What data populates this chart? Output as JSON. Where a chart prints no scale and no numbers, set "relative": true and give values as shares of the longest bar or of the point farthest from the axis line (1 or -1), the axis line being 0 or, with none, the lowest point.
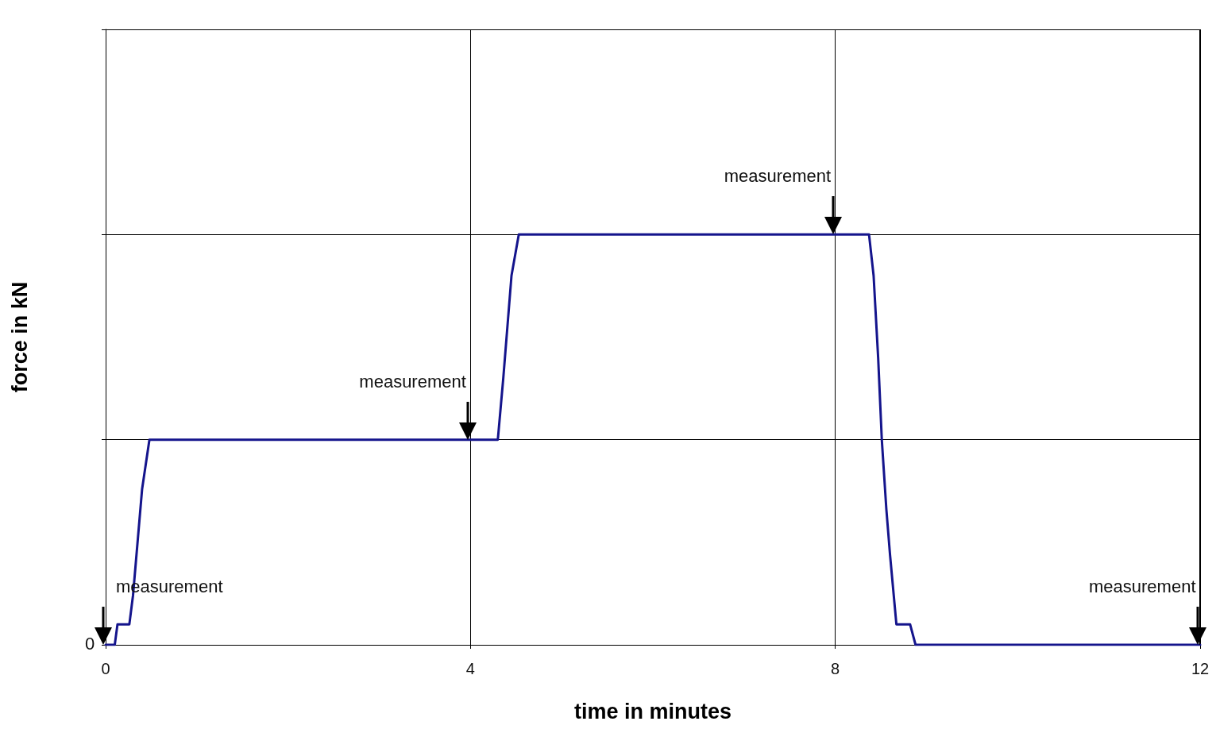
{
  "chart_data": {
    "type": "line",
    "xlabel": "time in minutes",
    "ylabel": "force in kN",
    "relative": true,
    "x": [
      0,
      0.1,
      0.13,
      0.26,
      0.3,
      0.4,
      0.48,
      4.3,
      4.36,
      4.45,
      4.53,
      8.37,
      8.42,
      8.47,
      8.51,
      8.56,
      8.6,
      8.67,
      8.82,
      8.88,
      12
    ],
    "series": [
      {
        "color": "#14148c",
        "values": [
          0,
          0,
          0.05,
          0.05,
          0.12,
          0.38,
          0.5,
          0.5,
          0.65,
          0.9,
          1,
          1,
          0.9,
          0.7,
          0.5,
          0.33,
          0.22,
          0.05,
          0.05,
          0,
          0
        ]
      }
    ],
    "xlim": [
      0,
      12
    ],
    "xticks": [
      0,
      4,
      8,
      12
    ],
    "grid": true,
    "marker": "none",
    "line_style": "solid",
    "annotations": [
      "0",
      {
        "text": "measurement",
        "x": 0,
        "y": 0
      },
      {
        "text": "measurement",
        "x": 4,
        "y": 0.5
      },
      {
        "text": "measurement",
        "x": 8,
        "y": 1
      },
      {
        "text": "measurement",
        "x": 12,
        "y": 0
      }
    ]
  }
}
